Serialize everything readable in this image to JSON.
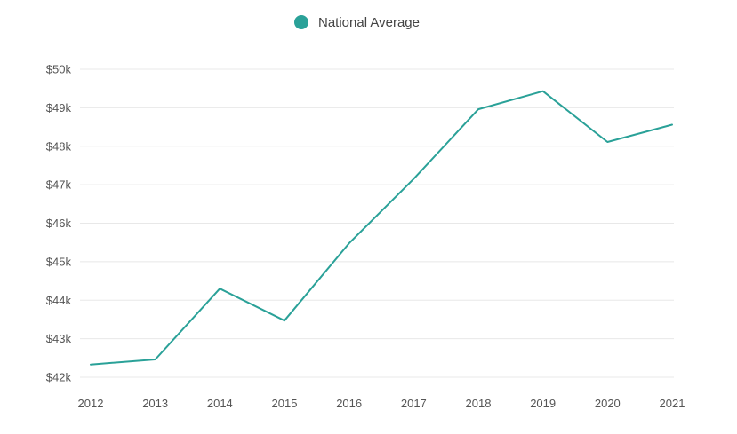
{
  "chart_data": {
    "type": "line",
    "title": "",
    "xlabel": "",
    "ylabel": "",
    "categories": [
      "2012",
      "2013",
      "2014",
      "2015",
      "2016",
      "2017",
      "2018",
      "2019",
      "2020",
      "2021"
    ],
    "series": [
      {
        "name": "National Average",
        "color": "#2aa198",
        "values": [
          42330,
          42460,
          44300,
          43470,
          45480,
          47150,
          48960,
          49430,
          48110,
          48560
        ]
      }
    ],
    "ylim": [
      42000,
      50000
    ],
    "yticks": [
      42000,
      43000,
      44000,
      45000,
      46000,
      47000,
      48000,
      49000,
      50000
    ],
    "ytick_labels": [
      "$42k",
      "$43k",
      "$44k",
      "$45k",
      "$46k",
      "$47k",
      "$48k",
      "$49k",
      "$50k"
    ],
    "grid": true,
    "legend_position": "top-center"
  }
}
